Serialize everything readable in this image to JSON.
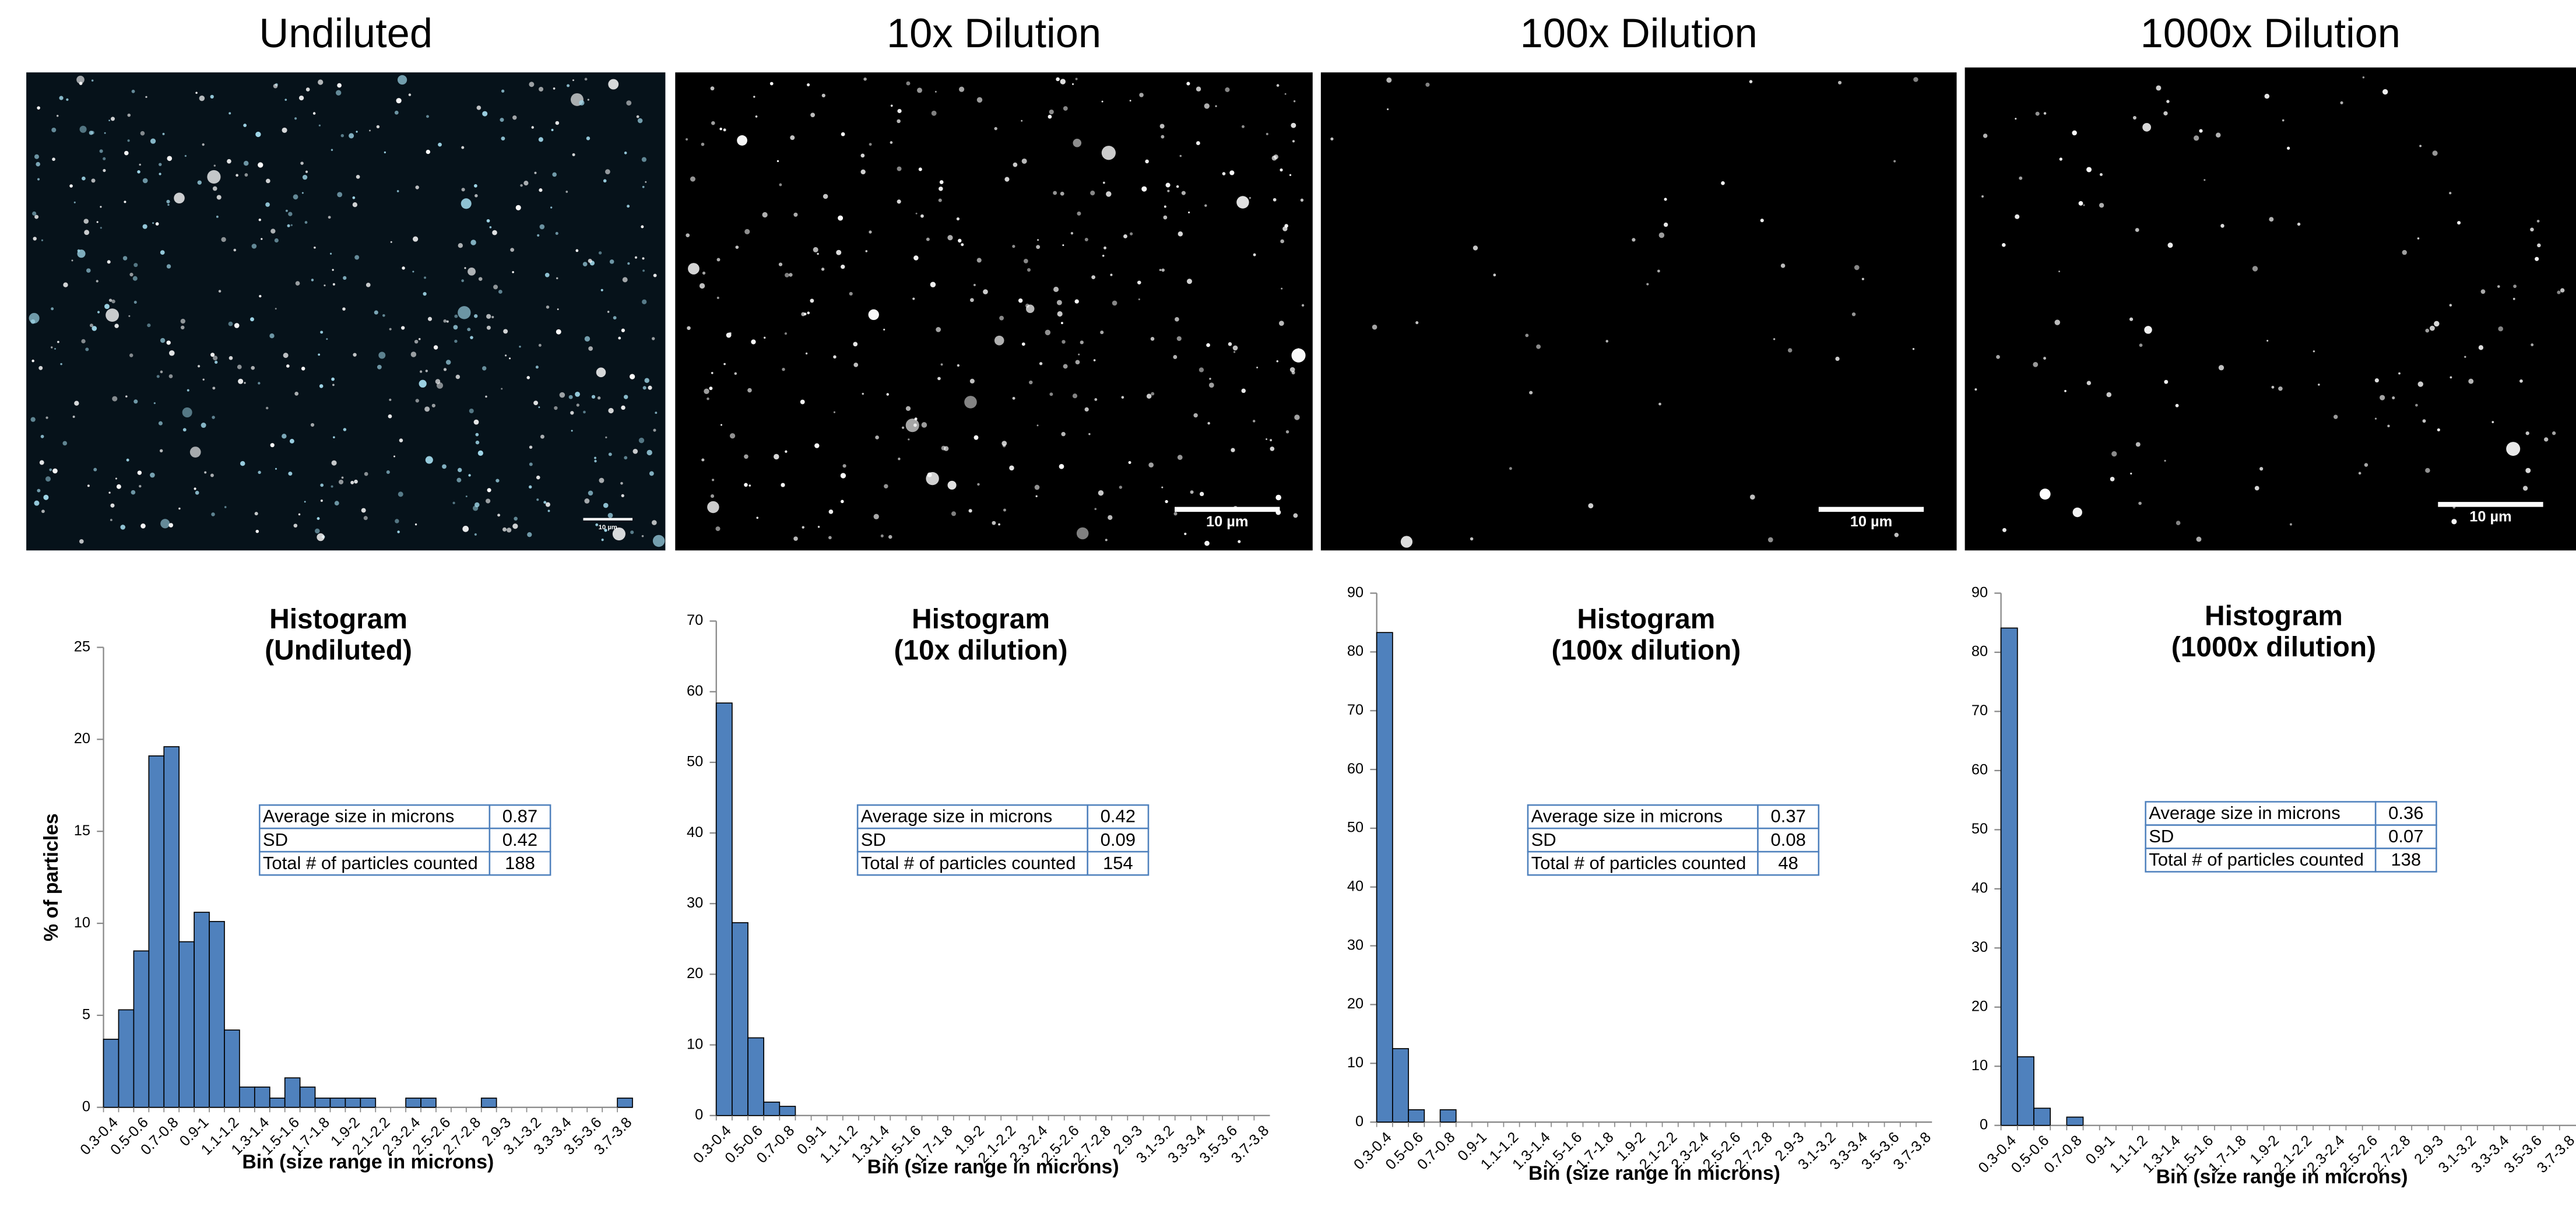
{
  "panels": [
    {
      "label": "Undiluted",
      "scale_bar": "10 µm"
    },
    {
      "label": "10x Dilution",
      "scale_bar": "10 µm"
    },
    {
      "label": "100x Dilution",
      "scale_bar": "10 µm"
    },
    {
      "label": "1000x Dilution",
      "scale_bar": "10 µm"
    }
  ],
  "chart_data": [
    {
      "type": "bar",
      "title": [
        "Histogram",
        "(Undiluted)"
      ],
      "x_label": "Bin (size range in microns)",
      "y_label": "% of particles",
      "color": "#4f81bd",
      "categories": [
        "0.3-0.4",
        null,
        "0.5-0.6",
        null,
        "0.7-0.8",
        null,
        "0.9-1",
        null,
        "1.1-1.2",
        null,
        "1.3-1.4",
        null,
        "1.5-1.6",
        null,
        "1.7-1.8",
        null,
        "1.9-2",
        null,
        "2.1-2.2",
        null,
        "2.3-2.4",
        null,
        "2.5-2.6",
        null,
        "2.7-2.8",
        null,
        "2.9-3",
        null,
        "3.1-3.2",
        null,
        "3.3-3.4",
        null,
        "3.5-3.6",
        null,
        "3.7-3.8"
      ],
      "values": [
        3.7,
        5.3,
        8.5,
        19.1,
        19.6,
        9.0,
        10.6,
        10.1,
        4.2,
        1.1,
        1.1,
        0.5,
        1.6,
        1.1,
        0.5,
        0.5,
        0.5,
        0.5,
        0,
        0,
        0.5,
        0.5,
        0,
        0,
        0,
        0.5,
        0,
        0,
        0,
        0,
        0,
        0,
        0,
        0,
        0.5
      ],
      "ylim": [
        0,
        25
      ],
      "yticks": [
        0,
        5,
        10,
        15,
        20,
        25
      ],
      "table": {
        "rows": [
          [
            "Average size in microns",
            0.87
          ],
          [
            "SD",
            0.42
          ],
          [
            "Total # of particles counted",
            188
          ]
        ]
      }
    },
    {
      "type": "bar",
      "title": [
        "Histogram",
        "(10x dilution)"
      ],
      "x_label": "Bin (size range in microns)",
      "color": "#4f81bd",
      "categories": [
        "0.3-0.4",
        null,
        "0.5-0.6",
        null,
        "0.7-0.8",
        null,
        "0.9-1",
        null,
        "1.1-1.2",
        null,
        "1.3-1.4",
        null,
        "1.5-1.6",
        null,
        "1.7-1.8",
        null,
        "1.9-2",
        null,
        "2.1-2.2",
        null,
        "2.3-2.4",
        null,
        "2.5-2.6",
        null,
        "2.7-2.8",
        null,
        "2.9-3",
        null,
        "3.1-3.2",
        null,
        "3.3-3.4",
        null,
        "3.5-3.6",
        null,
        "3.7-3.8"
      ],
      "values": [
        58.4,
        27.3,
        11.0,
        1.9,
        1.3,
        0,
        0,
        0,
        0,
        0,
        0,
        0,
        0,
        0,
        0,
        0,
        0,
        0,
        0,
        0,
        0,
        0,
        0,
        0,
        0,
        0,
        0,
        0,
        0,
        0,
        0,
        0,
        0,
        0,
        0
      ],
      "ylim": [
        0,
        70
      ],
      "yticks": [
        0,
        10,
        20,
        30,
        40,
        50,
        60,
        70
      ],
      "table": {
        "rows": [
          [
            "Average size in microns",
            0.42
          ],
          [
            "SD",
            0.09
          ],
          [
            "Total # of particles counted",
            154
          ]
        ]
      }
    },
    {
      "type": "bar",
      "title": [
        "Histogram",
        "(100x dilution)"
      ],
      "x_label": "Bin (size range in microns)",
      "color": "#4f81bd",
      "categories": [
        "0.3-0.4",
        null,
        "0.5-0.6",
        null,
        "0.7-0.8",
        null,
        "0.9-1",
        null,
        "1.1-1.2",
        null,
        "1.3-1.4",
        null,
        "1.5-1.6",
        null,
        "1.7-1.8",
        null,
        "1.9-2",
        null,
        "2.1-2.2",
        null,
        "2.3-2.4",
        null,
        "2.5-2.6",
        null,
        "2.7-2.8",
        null,
        "2.9-3",
        null,
        "3.1-3.2",
        null,
        "3.3-3.4",
        null,
        "3.5-3.6",
        null,
        "3.7-3.8"
      ],
      "values": [
        83.3,
        12.5,
        2.1,
        0,
        2.1,
        0,
        0,
        0,
        0,
        0,
        0,
        0,
        0,
        0,
        0,
        0,
        0,
        0,
        0,
        0,
        0,
        0,
        0,
        0,
        0,
        0,
        0,
        0,
        0,
        0,
        0,
        0,
        0,
        0,
        0
      ],
      "ylim": [
        0,
        90
      ],
      "yticks": [
        0,
        10,
        20,
        30,
        40,
        50,
        60,
        70,
        80,
        90
      ],
      "table": {
        "rows": [
          [
            "Average size in microns",
            0.37
          ],
          [
            "SD",
            0.08
          ],
          [
            "Total # of particles counted",
            48
          ]
        ]
      }
    },
    {
      "type": "bar",
      "title": [
        "Histogram",
        "(1000x dilution)"
      ],
      "x_label": "Bin (size range in microns)",
      "color": "#4f81bd",
      "categories": [
        "0.3-0.4",
        null,
        "0.5-0.6",
        null,
        "0.7-0.8",
        null,
        "0.9-1",
        null,
        "1.1-1.2",
        null,
        "1.3-1.4",
        null,
        "1.5-1.6",
        null,
        "1.7-1.8",
        null,
        "1.9-2",
        null,
        "2.1-2.2",
        null,
        "2.3-2.4",
        null,
        "2.5-2.6",
        null,
        "2.7-2.8",
        null,
        "2.9-3",
        null,
        "3.1-3.2",
        null,
        "3.3-3.4",
        null,
        "3.5-3.6",
        null,
        "3.7-3.8"
      ],
      "values": [
        84.1,
        11.6,
        2.9,
        0,
        1.4,
        0,
        0,
        0,
        0,
        0,
        0,
        0,
        0,
        0,
        0,
        0,
        0,
        0,
        0,
        0,
        0,
        0,
        0,
        0,
        0,
        0,
        0,
        0,
        0,
        0,
        0,
        0,
        0,
        0,
        0
      ],
      "ylim": [
        0,
        90
      ],
      "yticks": [
        0,
        10,
        20,
        30,
        40,
        50,
        60,
        70,
        80,
        90
      ],
      "table": {
        "rows": [
          [
            "Average size in microns",
            0.36
          ],
          [
            "SD",
            0.07
          ],
          [
            "Total # of particles counted",
            138
          ]
        ]
      }
    }
  ]
}
